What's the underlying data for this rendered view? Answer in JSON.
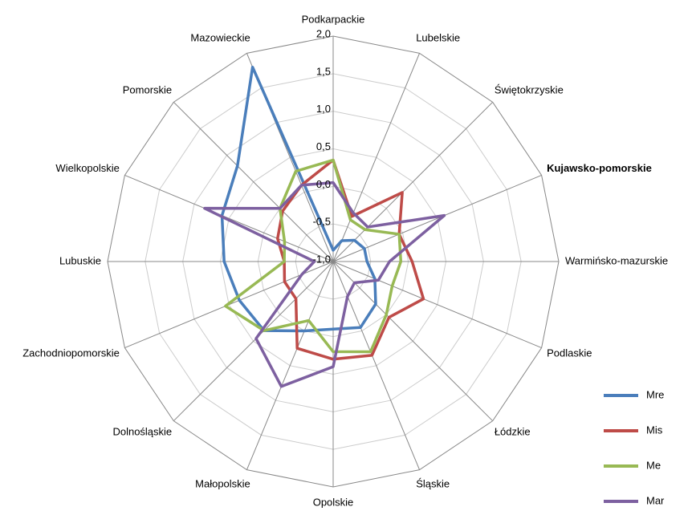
{
  "chart_data": {
    "type": "radar",
    "categories": [
      "Podkarpackie",
      "Lubelskie",
      "Świętokrzyskie",
      "Kujawsko-pomorskie",
      "Warmińsko-mazurskie",
      "Podlaskie",
      "Łódzkie",
      "Śląskie",
      "Opolskie",
      "Małopolskie",
      "Dolnośląskie",
      "Zachodniopomorskie",
      "Lubuskie",
      "Wielkopolskie",
      "Pomorskie",
      "Mazowieckie"
    ],
    "series": [
      {
        "name": "Mre",
        "color": "#4a7ebb",
        "values": [
          -0.85,
          -0.7,
          -0.6,
          -0.55,
          -0.55,
          -0.4,
          -0.2,
          -0.05,
          -0.1,
          0.0,
          0.3,
          0.35,
          0.45,
          0.6,
          0.8,
          1.8
        ]
      },
      {
        "name": "Mis",
        "color": "#be4b48",
        "values": [
          0.35,
          -0.35,
          0.3,
          -0.05,
          0.05,
          0.3,
          0.05,
          0.35,
          0.3,
          0.25,
          -0.3,
          -0.3,
          -0.35,
          -0.2,
          -0.05,
          0.1
        ]
      },
      {
        "name": "Me",
        "color": "#98b954",
        "values": [
          0.35,
          -0.4,
          -0.4,
          -0.05,
          -0.1,
          -0.15,
          0.0,
          0.3,
          0.2,
          -0.15,
          0.3,
          0.55,
          -0.35,
          -0.3,
          0.0,
          0.3
        ]
      },
      {
        "name": "Mar",
        "color": "#7d60a0",
        "values": [
          0.05,
          -0.3,
          -0.35,
          0.6,
          -0.25,
          -0.35,
          -0.6,
          -0.5,
          0.4,
          0.8,
          0.45,
          -0.55,
          -0.75,
          0.85,
          0.0,
          0.1
        ]
      }
    ],
    "ylim": [
      -1.0,
      2.0
    ],
    "yticks": [
      {
        "value": -1.0,
        "label": "-1,0"
      },
      {
        "value": -0.5,
        "label": "-0,5"
      },
      {
        "value": 0.0,
        "label": "0,0"
      },
      {
        "value": 0.5,
        "label": "0,5"
      },
      {
        "value": 1.0,
        "label": "1,0"
      },
      {
        "value": 1.5,
        "label": "1,5"
      },
      {
        "value": 2.0,
        "label": "2,0"
      }
    ],
    "grid": true,
    "legend": "lower right"
  }
}
